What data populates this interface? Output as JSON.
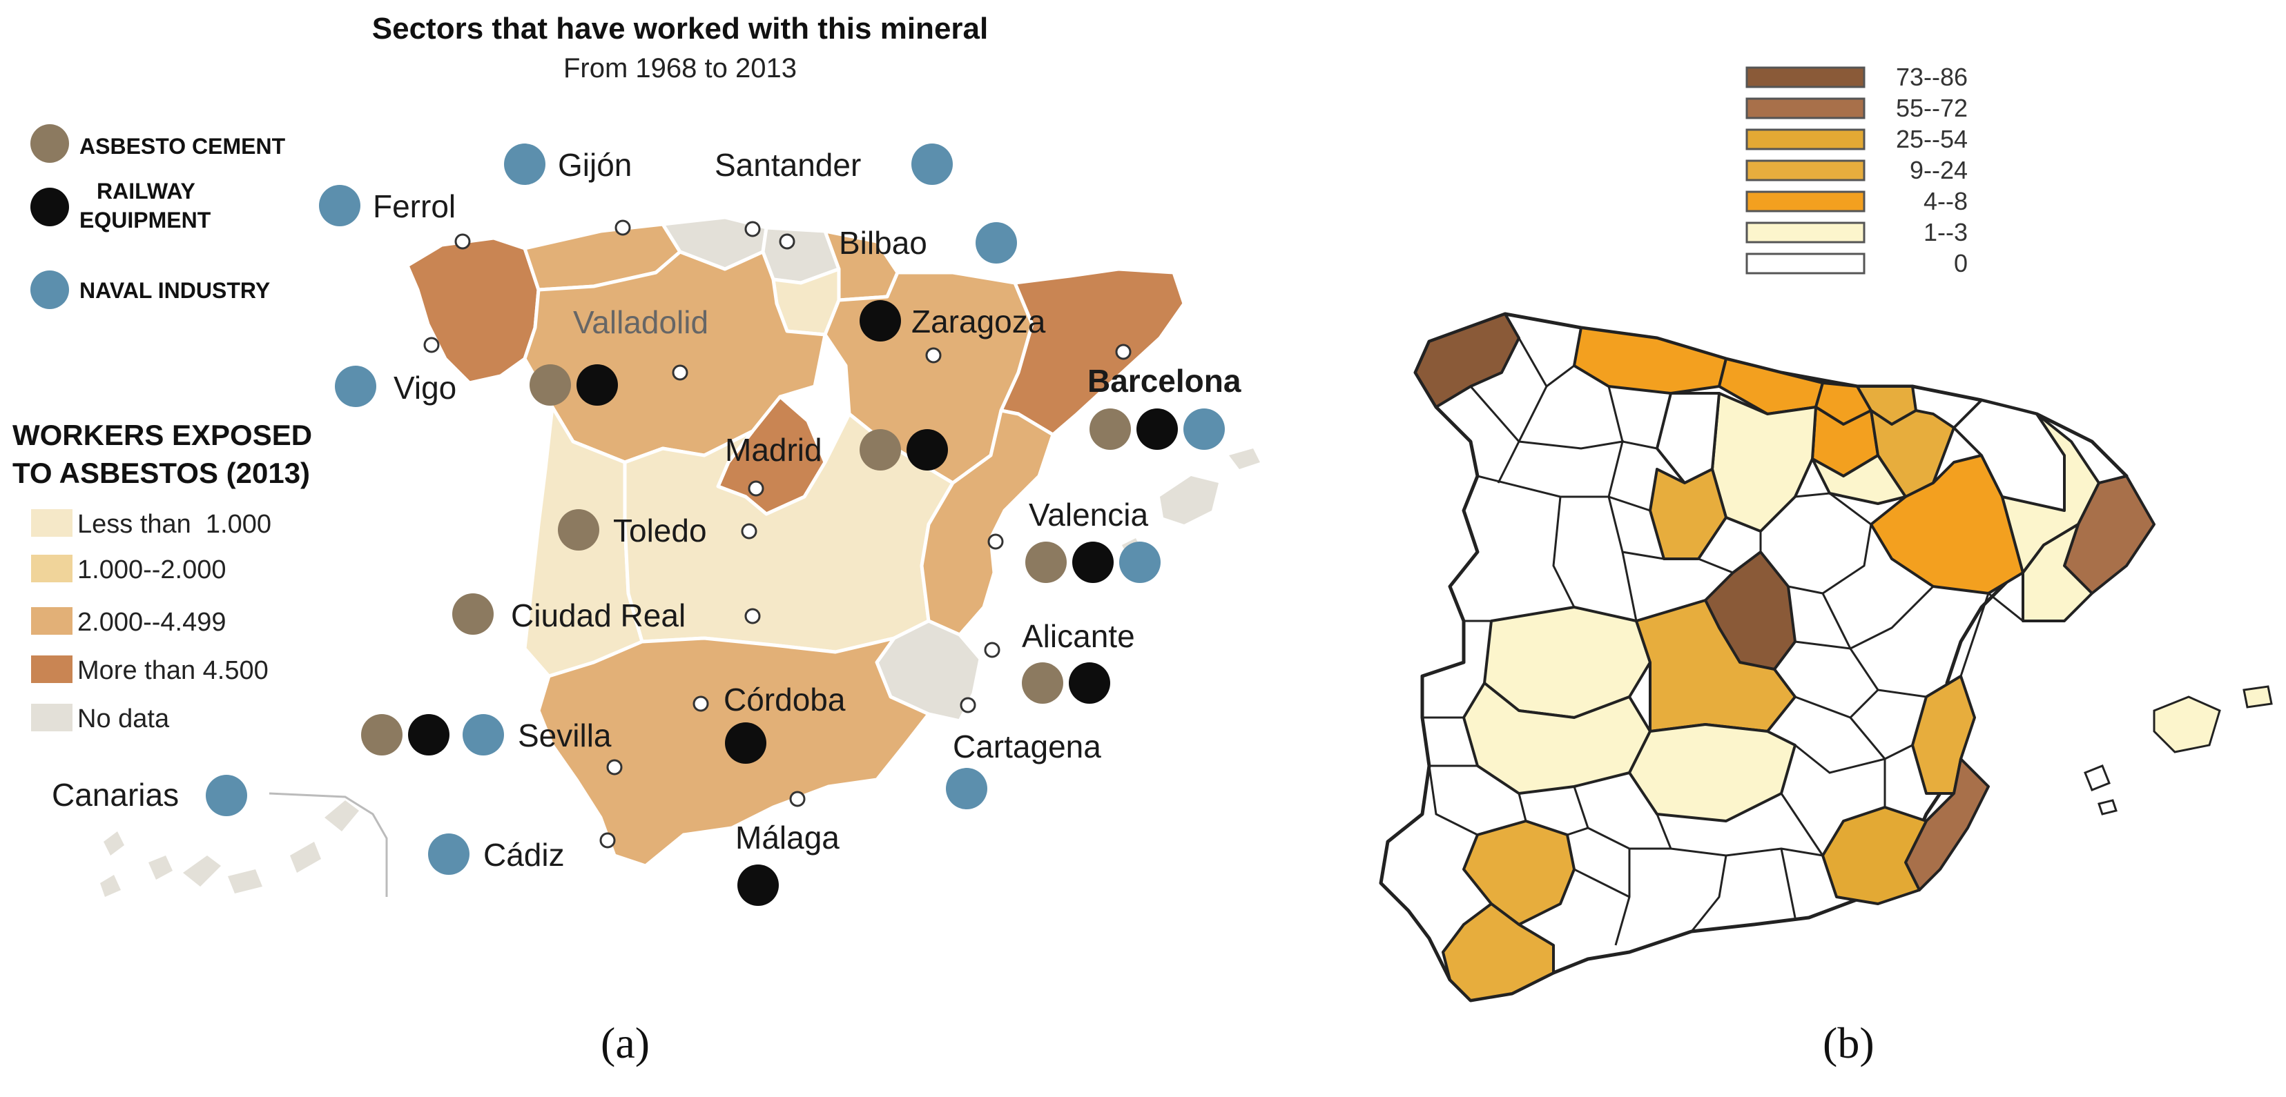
{
  "colors": {
    "less_1000": "#f5e8c8",
    "c1000_2000": "#f0d49a",
    "c2000_4499": "#e2b077",
    "more_4500": "#c98553",
    "no_data": "#e3e0d8",
    "asbesto_cement": "#8c7a60",
    "railway": "#0d0d0d",
    "naval": "#5c8fad",
    "b_73_86": "#8a5a38",
    "b_55_72": "#a8704a",
    "b_25_54": "#e3a934",
    "b_9_24": "#e7ad3d",
    "b_4_8": "#f3a01f",
    "b_1_3": "#fcf5cc",
    "b_0": "#ffffff"
  },
  "panel_a": {
    "title": "Sectors that have worked with this mineral",
    "subtitle": "From 1968 to 2013",
    "sectors_legend": [
      {
        "label": "ASBESTO CEMENT",
        "color": "asbesto_cement"
      },
      {
        "label": "RAILWAY EQUIPMENT",
        "color": "railway"
      },
      {
        "label": "NAVAL INDUSTRY",
        "color": "naval"
      }
    ],
    "workers_legend_title_1": "WORKERS EXPOSED",
    "workers_legend_title_2": "TO ASBESTOS (2013)",
    "workers_legend": [
      {
        "label": "Less than  1.000",
        "color": "less_1000"
      },
      {
        "label": "1.000--2.000",
        "color": "c1000_2000"
      },
      {
        "label": "2.000--4.499",
        "color": "c2000_4499"
      },
      {
        "label": "More than 4.500",
        "color": "more_4500"
      },
      {
        "label": "No data",
        "color": "no_data"
      }
    ],
    "cities": [
      {
        "name": "Gijón",
        "sectors": [
          "naval"
        ]
      },
      {
        "name": "Santander",
        "sectors": [
          "naval"
        ]
      },
      {
        "name": "Ferrol",
        "sectors": [
          "naval"
        ]
      },
      {
        "name": "Bilbao",
        "sectors": [
          "naval"
        ]
      },
      {
        "name": "Zaragoza",
        "sectors": [
          "railway"
        ]
      },
      {
        "name": "Valladolid",
        "sectors": [
          "asbesto_cement",
          "railway"
        ]
      },
      {
        "name": "Vigo",
        "sectors": [
          "naval"
        ]
      },
      {
        "name": "Barcelona",
        "sectors": [
          "asbesto_cement",
          "railway",
          "naval"
        ]
      },
      {
        "name": "Madrid",
        "sectors": [
          "asbesto_cement",
          "railway"
        ]
      },
      {
        "name": "Toledo",
        "sectors": [
          "asbesto_cement"
        ]
      },
      {
        "name": "Valencia",
        "sectors": [
          "asbesto_cement",
          "railway",
          "naval"
        ]
      },
      {
        "name": "Ciudad Real",
        "sectors": [
          "asbesto_cement"
        ]
      },
      {
        "name": "Alicante",
        "sectors": [
          "asbesto_cement",
          "railway"
        ]
      },
      {
        "name": "Sevilla",
        "sectors": [
          "asbesto_cement",
          "railway",
          "naval"
        ]
      },
      {
        "name": "Córdoba",
        "sectors": [
          "railway"
        ]
      },
      {
        "name": "Cartagena",
        "sectors": [
          "naval"
        ]
      },
      {
        "name": "Canarias",
        "sectors": [
          "naval"
        ]
      },
      {
        "name": "Cádiz",
        "sectors": [
          "naval"
        ]
      },
      {
        "name": "Málaga",
        "sectors": [
          "railway"
        ]
      }
    ],
    "caption": "(a)"
  },
  "panel_b": {
    "legend": [
      {
        "label": "73--86",
        "color": "b_73_86"
      },
      {
        "label": "55--72",
        "color": "b_55_72"
      },
      {
        "label": "25--54",
        "color": "b_25_54"
      },
      {
        "label": "9--24",
        "color": "b_9_24"
      },
      {
        "label": "4--8",
        "color": "b_4_8"
      },
      {
        "label": "1--3",
        "color": "b_1_3"
      },
      {
        "label": "0",
        "color": "b_0"
      }
    ],
    "caption": "(b)"
  }
}
